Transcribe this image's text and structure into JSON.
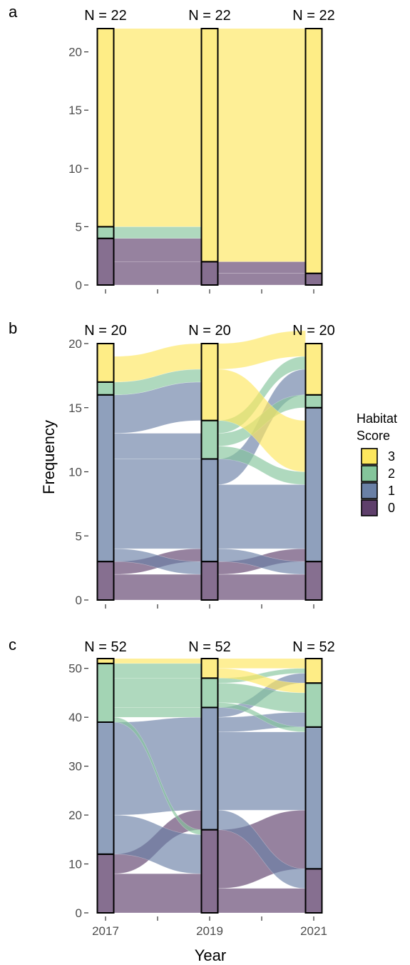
{
  "chart_data": [
    {
      "panel": "a",
      "type": "alluvial",
      "x": [
        "2017",
        "2019",
        "2021"
      ],
      "n_labels": [
        "N = 22",
        "N = 22",
        "N = 22"
      ],
      "yticks": [
        0,
        5,
        10,
        15,
        20
      ],
      "ylim": [
        0,
        22
      ],
      "stratum_counts": [
        {
          "3": 17,
          "2": 1,
          "1": 0,
          "0": 4
        },
        {
          "3": 20,
          "2": 0,
          "1": 0,
          "0": 2
        },
        {
          "3": 21,
          "2": 0,
          "1": 0,
          "0": 1
        }
      ],
      "flows": [
        [
          {
            "from": "0",
            "to": "0",
            "n": 2
          },
          {
            "from": "0",
            "to": "3",
            "n": 2
          },
          {
            "from": "2",
            "to": "3",
            "n": 1
          },
          {
            "from": "3",
            "to": "3",
            "n": 17
          }
        ],
        [
          {
            "from": "0",
            "to": "0",
            "n": 1
          },
          {
            "from": "0",
            "to": "3",
            "n": 1
          },
          {
            "from": "3",
            "to": "3",
            "n": 20
          }
        ]
      ]
    },
    {
      "panel": "b",
      "type": "alluvial",
      "x": [
        "2017",
        "2019",
        "2021"
      ],
      "n_labels": [
        "N = 20",
        "N = 20",
        "N = 20"
      ],
      "yticks": [
        0,
        5,
        10,
        15,
        20
      ],
      "ylim": [
        0,
        20
      ],
      "stratum_counts": [
        {
          "3": 3,
          "2": 1,
          "1": 13,
          "0": 3
        },
        {
          "3": 6,
          "2": 3,
          "1": 8,
          "0": 3
        },
        {
          "3": 4,
          "2": 1,
          "1": 12,
          "0": 3
        }
      ],
      "flows": [
        [
          {
            "from": "0",
            "to": "0",
            "n": 2
          },
          {
            "from": "0",
            "to": "1",
            "n": 1
          },
          {
            "from": "1",
            "to": "0",
            "n": 1
          },
          {
            "from": "1",
            "to": "1",
            "n": 7
          },
          {
            "from": "1",
            "to": "2",
            "n": 2
          },
          {
            "from": "1",
            "to": "3",
            "n": 3
          },
          {
            "from": "2",
            "to": "3",
            "n": 1
          },
          {
            "from": "3",
            "to": "3",
            "n": 2
          }
        ],
        [
          {
            "from": "0",
            "to": "0",
            "n": 2
          },
          {
            "from": "0",
            "to": "1",
            "n": 1
          },
          {
            "from": "1",
            "to": "0",
            "n": 1
          },
          {
            "from": "1",
            "to": "1",
            "n": 5
          },
          {
            "from": "1",
            "to": "3",
            "n": 2
          },
          {
            "from": "2",
            "to": "2",
            "n": 1
          },
          {
            "from": "2",
            "to": "1",
            "n": 1
          },
          {
            "from": "2",
            "to": "3",
            "n": 1
          },
          {
            "from": "3",
            "to": "1",
            "n": 4
          },
          {
            "from": "3",
            "to": "3",
            "n": 2
          }
        ]
      ]
    },
    {
      "panel": "c",
      "type": "alluvial",
      "x": [
        "2017",
        "2019",
        "2021"
      ],
      "n_labels": [
        "N = 52",
        "N = 52",
        "N = 52"
      ],
      "yticks": [
        0,
        10,
        20,
        30,
        40,
        50
      ],
      "ylim": [
        0,
        52
      ],
      "xtick_labels": [
        "2017",
        "2019",
        "2021"
      ],
      "stratum_counts": [
        {
          "3": 1,
          "2": 12,
          "1": 27,
          "0": 12
        },
        {
          "3": 4,
          "2": 6,
          "1": 25,
          "0": 17
        },
        {
          "3": 5,
          "2": 9,
          "1": 29,
          "0": 9
        }
      ],
      "flows": [
        [
          {
            "from": "0",
            "to": "0",
            "n": 8
          },
          {
            "from": "0",
            "to": "1",
            "n": 4
          },
          {
            "from": "1",
            "to": "0",
            "n": 8
          },
          {
            "from": "1",
            "to": "1",
            "n": 19
          },
          {
            "from": "2",
            "to": "0",
            "n": 1
          },
          {
            "from": "2",
            "to": "1",
            "n": 2
          },
          {
            "from": "2",
            "to": "2",
            "n": 6
          },
          {
            "from": "2",
            "to": "3",
            "n": 3
          },
          {
            "from": "3",
            "to": "3",
            "n": 1
          }
        ],
        [
          {
            "from": "0",
            "to": "0",
            "n": 5
          },
          {
            "from": "0",
            "to": "1",
            "n": 12
          },
          {
            "from": "1",
            "to": "0",
            "n": 4
          },
          {
            "from": "1",
            "to": "1",
            "n": 16
          },
          {
            "from": "1",
            "to": "2",
            "n": 3
          },
          {
            "from": "1",
            "to": "3",
            "n": 2
          },
          {
            "from": "2",
            "to": "1",
            "n": 1
          },
          {
            "from": "2",
            "to": "2",
            "n": 4
          },
          {
            "from": "2",
            "to": "3",
            "n": 1
          },
          {
            "from": "3",
            "to": "2",
            "n": 2
          },
          {
            "from": "3",
            "to": "3",
            "n": 2
          }
        ]
      ]
    }
  ],
  "shared": {
    "ylabel": "Frequency",
    "xlabel": "Year",
    "legend": {
      "title_lines": [
        "Habitat",
        "Score"
      ],
      "items": [
        {
          "label": "3",
          "color": "#FDE75E"
        },
        {
          "label": "2",
          "color": "#84C59B"
        },
        {
          "label": "1",
          "color": "#6A80A6"
        },
        {
          "label": "0",
          "color": "#5E3F6B"
        }
      ],
      "placement": "right"
    },
    "colors": {
      "3": "#FDE75E",
      "2": "#84C59B",
      "1": "#6A80A6",
      "0": "#5E3F6B"
    }
  }
}
